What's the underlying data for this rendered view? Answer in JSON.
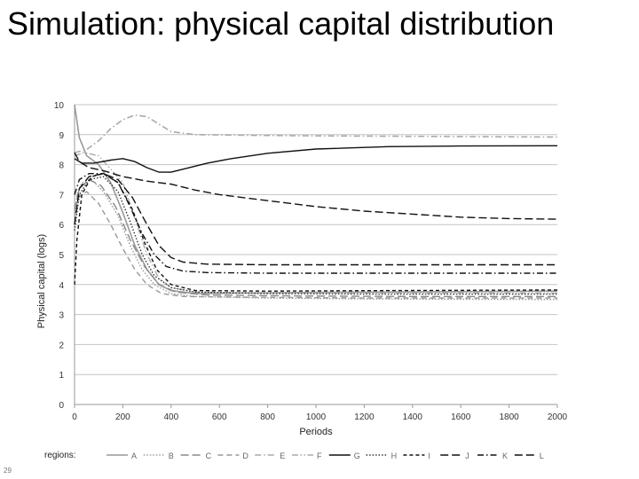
{
  "slide": {
    "title": "Simulation: physical capital distribution",
    "page_number": "29"
  },
  "chart_data": {
    "type": "line",
    "title": "",
    "xlabel": "Periods",
    "ylabel": "Physical capital (logs)",
    "xlim": [
      0,
      2000
    ],
    "ylim": [
      0,
      10
    ],
    "x_ticks": [
      "0",
      "200",
      "400",
      "600",
      "800",
      "1000",
      "1200",
      "1400",
      "1600",
      "1800",
      "2000"
    ],
    "y_ticks": [
      "0",
      "1",
      "2",
      "3",
      "4",
      "5",
      "6",
      "7",
      "8",
      "9",
      "10"
    ],
    "grid": "horizontal",
    "legend": {
      "title": "regions:",
      "placement": "bottom"
    },
    "series": [
      {
        "name": "A",
        "color": "#999999",
        "dash": "solid",
        "width": 1.6,
        "points": [
          [
            0,
            10
          ],
          [
            20,
            8.9
          ],
          [
            50,
            8.3
          ],
          [
            100,
            8.0
          ],
          [
            150,
            7.4
          ],
          [
            200,
            6.4
          ],
          [
            250,
            5.3
          ],
          [
            300,
            4.5
          ],
          [
            350,
            4.0
          ],
          [
            400,
            3.8
          ],
          [
            500,
            3.7
          ],
          [
            700,
            3.72
          ],
          [
            1000,
            3.74
          ],
          [
            1500,
            3.76
          ],
          [
            2000,
            3.78
          ]
        ]
      },
      {
        "name": "B",
        "color": "#999999",
        "dash": "dot",
        "width": 1.4,
        "points": [
          [
            0,
            6.0
          ],
          [
            10,
            7.0
          ],
          [
            30,
            7.4
          ],
          [
            70,
            7.5
          ],
          [
            120,
            7.1
          ],
          [
            180,
            6.3
          ],
          [
            230,
            5.3
          ],
          [
            280,
            4.5
          ],
          [
            330,
            4.0
          ],
          [
            400,
            3.7
          ],
          [
            500,
            3.6
          ],
          [
            800,
            3.55
          ],
          [
            1200,
            3.52
          ],
          [
            2000,
            3.5
          ]
        ]
      },
      {
        "name": "C",
        "color": "#888888",
        "dash": "long-dash",
        "width": 1.4,
        "points": [
          [
            0,
            6.5
          ],
          [
            20,
            7.2
          ],
          [
            60,
            7.5
          ],
          [
            110,
            7.3
          ],
          [
            170,
            6.6
          ],
          [
            230,
            5.5
          ],
          [
            290,
            4.6
          ],
          [
            350,
            4.0
          ],
          [
            420,
            3.75
          ],
          [
            550,
            3.65
          ],
          [
            900,
            3.62
          ],
          [
            1400,
            3.6
          ],
          [
            2000,
            3.6
          ]
        ]
      },
      {
        "name": "D",
        "color": "#999999",
        "dash": "dash",
        "width": 1.4,
        "points": [
          [
            0,
            6.3
          ],
          [
            15,
            6.9
          ],
          [
            50,
            7.1
          ],
          [
            100,
            6.7
          ],
          [
            150,
            6.0
          ],
          [
            200,
            5.2
          ],
          [
            250,
            4.5
          ],
          [
            300,
            4.0
          ],
          [
            360,
            3.7
          ],
          [
            450,
            3.6
          ],
          [
            700,
            3.58
          ],
          [
            1200,
            3.55
          ],
          [
            2000,
            3.55
          ]
        ]
      },
      {
        "name": "E",
        "color": "#aaaaaa",
        "dash": "dash-dot",
        "width": 1.6,
        "points": [
          [
            0,
            8.4
          ],
          [
            50,
            8.5
          ],
          [
            100,
            8.8
          ],
          [
            150,
            9.2
          ],
          [
            200,
            9.5
          ],
          [
            250,
            9.65
          ],
          [
            300,
            9.6
          ],
          [
            350,
            9.35
          ],
          [
            400,
            9.1
          ],
          [
            500,
            9.0
          ],
          [
            700,
            8.98
          ],
          [
            1000,
            8.96
          ],
          [
            1500,
            8.94
          ],
          [
            2000,
            8.92
          ]
        ]
      },
      {
        "name": "F",
        "color": "#aaaaaa",
        "dash": "dash-dot-dot",
        "width": 1.4,
        "points": [
          [
            0,
            8.3
          ],
          [
            40,
            8.4
          ],
          [
            100,
            8.3
          ],
          [
            200,
            7.4
          ],
          [
            250,
            6.2
          ],
          [
            300,
            5.0
          ],
          [
            350,
            4.2
          ],
          [
            400,
            3.9
          ],
          [
            500,
            3.75
          ],
          [
            800,
            3.72
          ],
          [
            1300,
            3.72
          ],
          [
            2000,
            3.72
          ]
        ]
      },
      {
        "name": "G",
        "color": "#111111",
        "dash": "solid",
        "width": 1.4,
        "points": [
          [
            0,
            8.2
          ],
          [
            30,
            8.05
          ],
          [
            80,
            8.05
          ],
          [
            150,
            8.15
          ],
          [
            200,
            8.2
          ],
          [
            250,
            8.1
          ],
          [
            300,
            7.9
          ],
          [
            350,
            7.75
          ],
          [
            400,
            7.75
          ],
          [
            450,
            7.85
          ],
          [
            550,
            8.05
          ],
          [
            650,
            8.2
          ],
          [
            800,
            8.38
          ],
          [
            1000,
            8.52
          ],
          [
            1300,
            8.6
          ],
          [
            1600,
            8.62
          ],
          [
            2000,
            8.63
          ]
        ]
      },
      {
        "name": "H",
        "color": "#333333",
        "dash": "dot",
        "width": 1.4,
        "points": [
          [
            0,
            5.8
          ],
          [
            20,
            7.0
          ],
          [
            60,
            7.5
          ],
          [
            120,
            7.6
          ],
          [
            180,
            7.1
          ],
          [
            230,
            6.1
          ],
          [
            280,
            5.0
          ],
          [
            330,
            4.3
          ],
          [
            400,
            3.9
          ],
          [
            500,
            3.75
          ],
          [
            800,
            3.7
          ],
          [
            1300,
            3.68
          ],
          [
            2000,
            3.68
          ]
        ]
      },
      {
        "name": "I",
        "color": "#111111",
        "dash": "short-dash",
        "width": 1.4,
        "points": [
          [
            0,
            4.0
          ],
          [
            10,
            5.5
          ],
          [
            30,
            7.0
          ],
          [
            70,
            7.6
          ],
          [
            120,
            7.7
          ],
          [
            180,
            7.4
          ],
          [
            240,
            6.5
          ],
          [
            290,
            5.4
          ],
          [
            340,
            4.5
          ],
          [
            400,
            4.0
          ],
          [
            500,
            3.8
          ],
          [
            800,
            3.78
          ],
          [
            1300,
            3.8
          ],
          [
            2000,
            3.82
          ]
        ]
      },
      {
        "name": "J",
        "color": "#111111",
        "dash": "long-dash",
        "width": 1.4,
        "points": [
          [
            0,
            6.0
          ],
          [
            20,
            7.2
          ],
          [
            60,
            7.6
          ],
          [
            120,
            7.7
          ],
          [
            180,
            7.5
          ],
          [
            240,
            6.9
          ],
          [
            300,
            6.0
          ],
          [
            350,
            5.3
          ],
          [
            400,
            4.9
          ],
          [
            450,
            4.75
          ],
          [
            550,
            4.68
          ],
          [
            800,
            4.66
          ],
          [
            1300,
            4.66
          ],
          [
            2000,
            4.66
          ]
        ]
      },
      {
        "name": "K",
        "color": "#111111",
        "dash": "dash-dot",
        "width": 1.4,
        "points": [
          [
            0,
            7.0
          ],
          [
            20,
            7.5
          ],
          [
            60,
            7.7
          ],
          [
            120,
            7.7
          ],
          [
            180,
            7.4
          ],
          [
            230,
            6.6
          ],
          [
            280,
            5.7
          ],
          [
            330,
            5.0
          ],
          [
            380,
            4.6
          ],
          [
            450,
            4.45
          ],
          [
            550,
            4.4
          ],
          [
            800,
            4.38
          ],
          [
            1300,
            4.38
          ],
          [
            2000,
            4.38
          ]
        ]
      },
      {
        "name": "L",
        "color": "#111111",
        "dash": "long-dash",
        "width": 1.4,
        "points": [
          [
            0,
            8.4
          ],
          [
            20,
            8.1
          ],
          [
            60,
            7.9
          ],
          [
            120,
            7.8
          ],
          [
            200,
            7.6
          ],
          [
            300,
            7.45
          ],
          [
            400,
            7.35
          ],
          [
            500,
            7.15
          ],
          [
            600,
            7.0
          ],
          [
            700,
            6.9
          ],
          [
            800,
            6.8
          ],
          [
            900,
            6.7
          ],
          [
            1000,
            6.6
          ],
          [
            1200,
            6.45
          ],
          [
            1400,
            6.35
          ],
          [
            1600,
            6.25
          ],
          [
            1800,
            6.2
          ],
          [
            2000,
            6.18
          ]
        ]
      }
    ]
  }
}
